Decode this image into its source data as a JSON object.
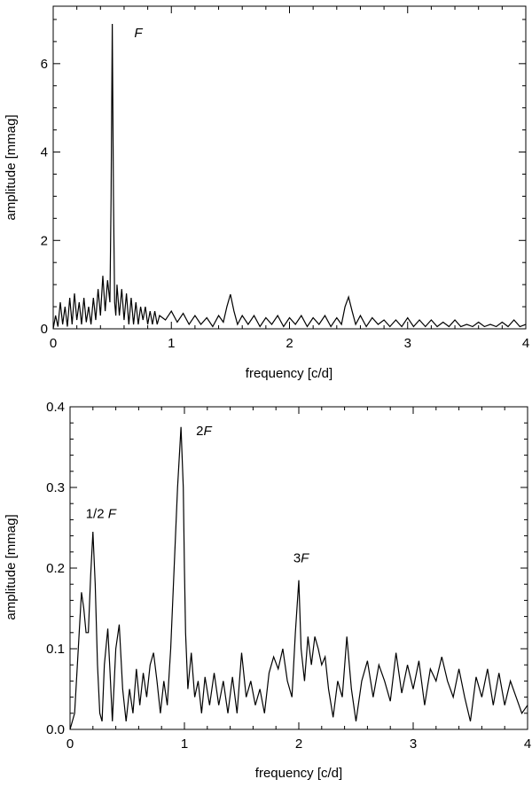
{
  "chart_data": [
    {
      "type": "line",
      "xlabel": "frequency [c/d]",
      "ylabel": "amplitude [mmag]",
      "xlim": [
        0,
        4
      ],
      "ylim": [
        0,
        7.3
      ],
      "xticks": [
        0,
        1,
        2,
        3,
        4
      ],
      "xtick_labels": [
        "0",
        "1",
        "2",
        "3",
        "4"
      ],
      "yticks": [
        0,
        2,
        4,
        6
      ],
      "ytick_labels": [
        "0",
        "2",
        "4",
        "6"
      ],
      "grid": false,
      "legend": "none",
      "annotations": [
        {
          "text": "F",
          "italic": true,
          "x": 0.72,
          "y": 6.6
        }
      ],
      "series": [
        {
          "x": [
            0.0,
            0.02,
            0.04,
            0.06,
            0.08,
            0.1,
            0.12,
            0.14,
            0.16,
            0.18,
            0.2,
            0.22,
            0.24,
            0.26,
            0.28,
            0.3,
            0.32,
            0.34,
            0.36,
            0.38,
            0.4,
            0.42,
            0.44,
            0.46,
            0.48,
            0.49,
            0.5,
            0.51,
            0.52,
            0.53,
            0.54,
            0.56,
            0.58,
            0.6,
            0.62,
            0.64,
            0.66,
            0.68,
            0.7,
            0.72,
            0.74,
            0.76,
            0.78,
            0.8,
            0.82,
            0.84,
            0.86,
            0.88,
            0.9,
            0.95,
            1.0,
            1.05,
            1.1,
            1.15,
            1.2,
            1.25,
            1.3,
            1.35,
            1.4,
            1.44,
            1.47,
            1.5,
            1.53,
            1.56,
            1.6,
            1.65,
            1.7,
            1.75,
            1.8,
            1.85,
            1.9,
            1.95,
            2.0,
            2.05,
            2.1,
            2.15,
            2.2,
            2.25,
            2.3,
            2.35,
            2.4,
            2.44,
            2.47,
            2.5,
            2.53,
            2.56,
            2.6,
            2.65,
            2.7,
            2.75,
            2.8,
            2.85,
            2.9,
            2.95,
            3.0,
            3.05,
            3.1,
            3.15,
            3.2,
            3.25,
            3.3,
            3.35,
            3.4,
            3.45,
            3.5,
            3.55,
            3.6,
            3.65,
            3.7,
            3.75,
            3.8,
            3.85,
            3.9,
            3.95,
            4.0
          ],
          "values": [
            0.0,
            0.3,
            0.05,
            0.6,
            0.1,
            0.5,
            0.05,
            0.7,
            0.1,
            0.8,
            0.2,
            0.6,
            0.1,
            0.7,
            0.15,
            0.5,
            0.1,
            0.7,
            0.2,
            0.9,
            0.3,
            1.2,
            0.4,
            1.1,
            0.6,
            3.0,
            6.9,
            3.0,
            0.6,
            0.3,
            1.0,
            0.3,
            0.9,
            0.2,
            0.8,
            0.1,
            0.7,
            0.1,
            0.6,
            0.1,
            0.5,
            0.2,
            0.5,
            0.1,
            0.4,
            0.1,
            0.4,
            0.1,
            0.3,
            0.2,
            0.4,
            0.15,
            0.35,
            0.1,
            0.3,
            0.1,
            0.25,
            0.05,
            0.3,
            0.15,
            0.5,
            0.78,
            0.4,
            0.1,
            0.3,
            0.1,
            0.3,
            0.05,
            0.25,
            0.1,
            0.3,
            0.05,
            0.25,
            0.1,
            0.3,
            0.05,
            0.25,
            0.1,
            0.3,
            0.05,
            0.25,
            0.1,
            0.5,
            0.72,
            0.4,
            0.1,
            0.3,
            0.05,
            0.25,
            0.1,
            0.2,
            0.05,
            0.2,
            0.05,
            0.25,
            0.05,
            0.2,
            0.05,
            0.2,
            0.05,
            0.15,
            0.05,
            0.2,
            0.05,
            0.1,
            0.05,
            0.15,
            0.05,
            0.1,
            0.05,
            0.15,
            0.05,
            0.2,
            0.05,
            0.1
          ]
        }
      ]
    },
    {
      "type": "line",
      "xlabel": "frequency [c/d]",
      "ylabel": "amplitude [mmag]",
      "xlim": [
        0,
        4
      ],
      "ylim": [
        0,
        0.4
      ],
      "xticks": [
        0,
        1,
        2,
        3,
        4
      ],
      "xtick_labels": [
        "0",
        "1",
        "2",
        "3",
        "4"
      ],
      "yticks": [
        0.0,
        0.1,
        0.2,
        0.3,
        0.4
      ],
      "ytick_labels": [
        "0.0",
        "0.1",
        "0.2",
        "0.3",
        "0.4"
      ],
      "grid": false,
      "legend": "none",
      "annotations": [
        {
          "text": "1/2 F",
          "italic_part": "F",
          "x": 0.27,
          "y": 0.262
        },
        {
          "text": "2F",
          "italic_part": "F",
          "x": 1.17,
          "y": 0.365
        },
        {
          "text": "3F",
          "italic_part": "F",
          "x": 2.02,
          "y": 0.207
        }
      ],
      "series": [
        {
          "x": [
            0.0,
            0.04,
            0.08,
            0.1,
            0.12,
            0.14,
            0.16,
            0.18,
            0.2,
            0.22,
            0.24,
            0.26,
            0.28,
            0.3,
            0.33,
            0.35,
            0.37,
            0.4,
            0.43,
            0.46,
            0.49,
            0.52,
            0.55,
            0.58,
            0.61,
            0.64,
            0.67,
            0.7,
            0.73,
            0.76,
            0.79,
            0.82,
            0.85,
            0.88,
            0.91,
            0.94,
            0.97,
            0.99,
            1.0,
            1.01,
            1.03,
            1.06,
            1.09,
            1.12,
            1.15,
            1.18,
            1.22,
            1.26,
            1.3,
            1.34,
            1.38,
            1.42,
            1.46,
            1.5,
            1.54,
            1.58,
            1.62,
            1.66,
            1.7,
            1.74,
            1.78,
            1.82,
            1.86,
            1.9,
            1.94,
            1.97,
            2.0,
            2.02,
            2.05,
            2.08,
            2.11,
            2.14,
            2.17,
            2.2,
            2.23,
            2.26,
            2.3,
            2.34,
            2.38,
            2.42,
            2.46,
            2.5,
            2.55,
            2.6,
            2.65,
            2.7,
            2.75,
            2.8,
            2.85,
            2.9,
            2.95,
            3.0,
            3.05,
            3.1,
            3.15,
            3.2,
            3.25,
            3.3,
            3.35,
            3.4,
            3.45,
            3.5,
            3.55,
            3.6,
            3.65,
            3.7,
            3.75,
            3.8,
            3.85,
            3.9,
            3.95,
            4.0
          ],
          "values": [
            0.0,
            0.02,
            0.12,
            0.17,
            0.15,
            0.12,
            0.12,
            0.19,
            0.245,
            0.18,
            0.08,
            0.02,
            0.01,
            0.08,
            0.125,
            0.07,
            0.01,
            0.1,
            0.13,
            0.05,
            0.01,
            0.05,
            0.02,
            0.075,
            0.03,
            0.07,
            0.04,
            0.08,
            0.095,
            0.06,
            0.02,
            0.06,
            0.03,
            0.1,
            0.2,
            0.3,
            0.375,
            0.3,
            0.2,
            0.12,
            0.05,
            0.095,
            0.04,
            0.06,
            0.02,
            0.065,
            0.03,
            0.07,
            0.03,
            0.06,
            0.02,
            0.065,
            0.02,
            0.095,
            0.04,
            0.06,
            0.03,
            0.05,
            0.02,
            0.07,
            0.09,
            0.075,
            0.1,
            0.06,
            0.04,
            0.12,
            0.185,
            0.1,
            0.06,
            0.115,
            0.08,
            0.115,
            0.1,
            0.08,
            0.09,
            0.05,
            0.015,
            0.06,
            0.04,
            0.115,
            0.05,
            0.01,
            0.06,
            0.085,
            0.04,
            0.08,
            0.06,
            0.035,
            0.095,
            0.045,
            0.08,
            0.05,
            0.085,
            0.03,
            0.075,
            0.06,
            0.09,
            0.06,
            0.04,
            0.075,
            0.04,
            0.01,
            0.065,
            0.04,
            0.075,
            0.03,
            0.07,
            0.03,
            0.06,
            0.04,
            0.02,
            0.03
          ]
        }
      ]
    }
  ]
}
